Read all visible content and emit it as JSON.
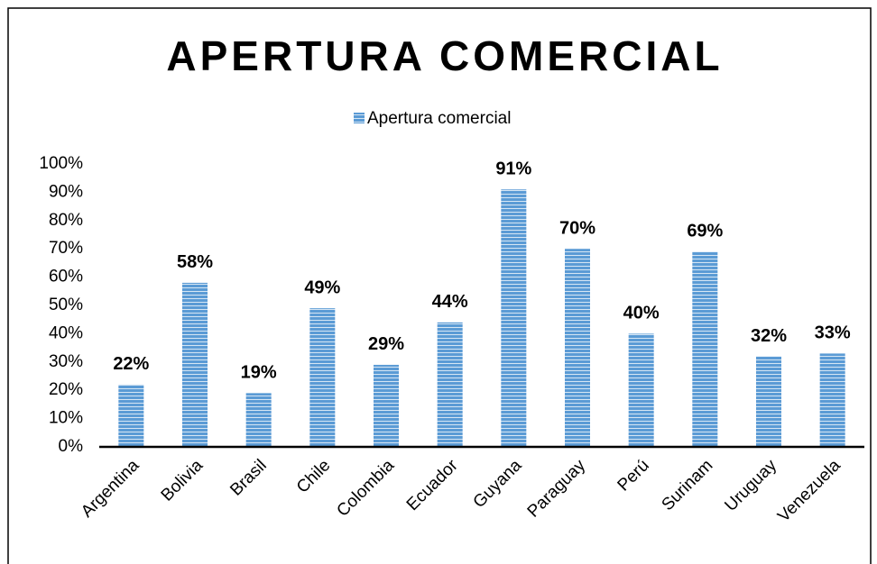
{
  "chart_data": {
    "type": "bar",
    "title": "APERTURA COMERCIAL",
    "legend": "Apertura comercial",
    "categories": [
      "Argentina",
      "Bolivia",
      "Brasil",
      "Chile",
      "Colombia",
      "Ecuador",
      "Guyana",
      "Paraguay",
      "Perú",
      "Surinam",
      "Uruguay",
      "Venezuela"
    ],
    "values": [
      22,
      58,
      19,
      49,
      29,
      44,
      91,
      70,
      40,
      69,
      32,
      33
    ],
    "value_labels": [
      "22%",
      "58%",
      "19%",
      "49%",
      "29%",
      "44%",
      "91%",
      "70%",
      "40%",
      "69%",
      "32%",
      "33%"
    ],
    "color": "#5b9bd5",
    "ylim": [
      0,
      100
    ],
    "yticks": [
      {
        "value": 0,
        "label": "0%"
      },
      {
        "value": 10,
        "label": "10%"
      },
      {
        "value": 20,
        "label": "20%"
      },
      {
        "value": 30,
        "label": "30%"
      },
      {
        "value": 40,
        "label": "40%"
      },
      {
        "value": 50,
        "label": "50%"
      },
      {
        "value": 60,
        "label": "60%"
      },
      {
        "value": 70,
        "label": "70%"
      },
      {
        "value": 80,
        "label": "80%"
      },
      {
        "value": 90,
        "label": "90%"
      },
      {
        "value": 100,
        "label": "100%"
      }
    ],
    "grid": false
  }
}
